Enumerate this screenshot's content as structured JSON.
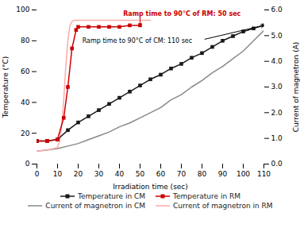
{
  "chart_data": {
    "type": "line",
    "xlabel": "Irradiation time (sec)",
    "ylabel": "Temperature (°C)",
    "y2label": "Current of magnetron (A)",
    "xlim": [
      0,
      110
    ],
    "xticks": [
      0,
      10,
      20,
      30,
      40,
      50,
      60,
      70,
      80,
      90,
      100,
      110
    ],
    "ylim": [
      0,
      100
    ],
    "yticks": [
      0,
      20,
      40,
      60,
      80,
      100
    ],
    "y2lim": [
      0,
      6
    ],
    "y2ticks": [
      0,
      1,
      2,
      3,
      4,
      5,
      6
    ],
    "grid": false,
    "legend": "bottom",
    "series": [
      {
        "name": "Temperature in CM",
        "color": "#1a1a1a",
        "marker": "square",
        "x": [
          0,
          5,
          10,
          15,
          20,
          25,
          30,
          35,
          40,
          45,
          50,
          55,
          60,
          65,
          70,
          75,
          80,
          85,
          90,
          95,
          100,
          105,
          110
        ],
        "values": [
          15,
          15,
          16,
          22,
          27,
          31,
          35,
          39,
          43,
          47,
          51,
          55,
          58,
          62,
          65,
          69,
          72,
          76,
          80,
          83,
          86,
          88,
          90
        ]
      },
      {
        "name": "Temperature in RM",
        "color": "#cc0000",
        "marker": "square",
        "x": [
          0,
          5,
          10,
          13,
          15,
          17,
          19,
          20,
          25,
          30,
          35,
          40,
          45,
          50
        ],
        "values": [
          15,
          15,
          16,
          30,
          50,
          75,
          87,
          89,
          89,
          89,
          89,
          89,
          90,
          90
        ]
      },
      {
        "name": "Current of magnetron in CM",
        "color": "#888888",
        "axis": "y2",
        "x": [
          0,
          5,
          10,
          15,
          20,
          25,
          30,
          35,
          40,
          45,
          50,
          55,
          60,
          65,
          70,
          75,
          80,
          85,
          90,
          95,
          100,
          105,
          110
        ],
        "values": [
          0.5,
          0.55,
          0.6,
          0.7,
          0.8,
          0.95,
          1.1,
          1.25,
          1.45,
          1.6,
          1.8,
          2.0,
          2.2,
          2.5,
          2.7,
          3.0,
          3.25,
          3.55,
          3.8,
          4.1,
          4.4,
          4.8,
          5.2
        ]
      },
      {
        "name": "Current of magnetron in RM",
        "color": "#ffaaaa",
        "axis": "y2",
        "x": [
          0,
          5,
          8,
          10,
          11,
          12,
          13,
          14,
          15,
          16,
          17,
          18,
          20,
          25,
          30,
          35,
          40,
          45,
          50,
          55
        ],
        "values": [
          0.5,
          0.55,
          0.6,
          0.65,
          0.9,
          1.5,
          2.5,
          3.8,
          4.8,
          5.4,
          5.55,
          5.6,
          5.6,
          5.6,
          5.6,
          5.6,
          5.6,
          5.6,
          5.6,
          5.6
        ]
      }
    ],
    "annotations": [
      {
        "text": "Ramp time to 90°C of RM: 50 sec",
        "x": 50,
        "y": 90,
        "color": "#cc0000"
      },
      {
        "text": "Ramp time to 90°C of CM: 110 sec",
        "x": 110,
        "y": 90,
        "color": "#000000"
      }
    ]
  }
}
